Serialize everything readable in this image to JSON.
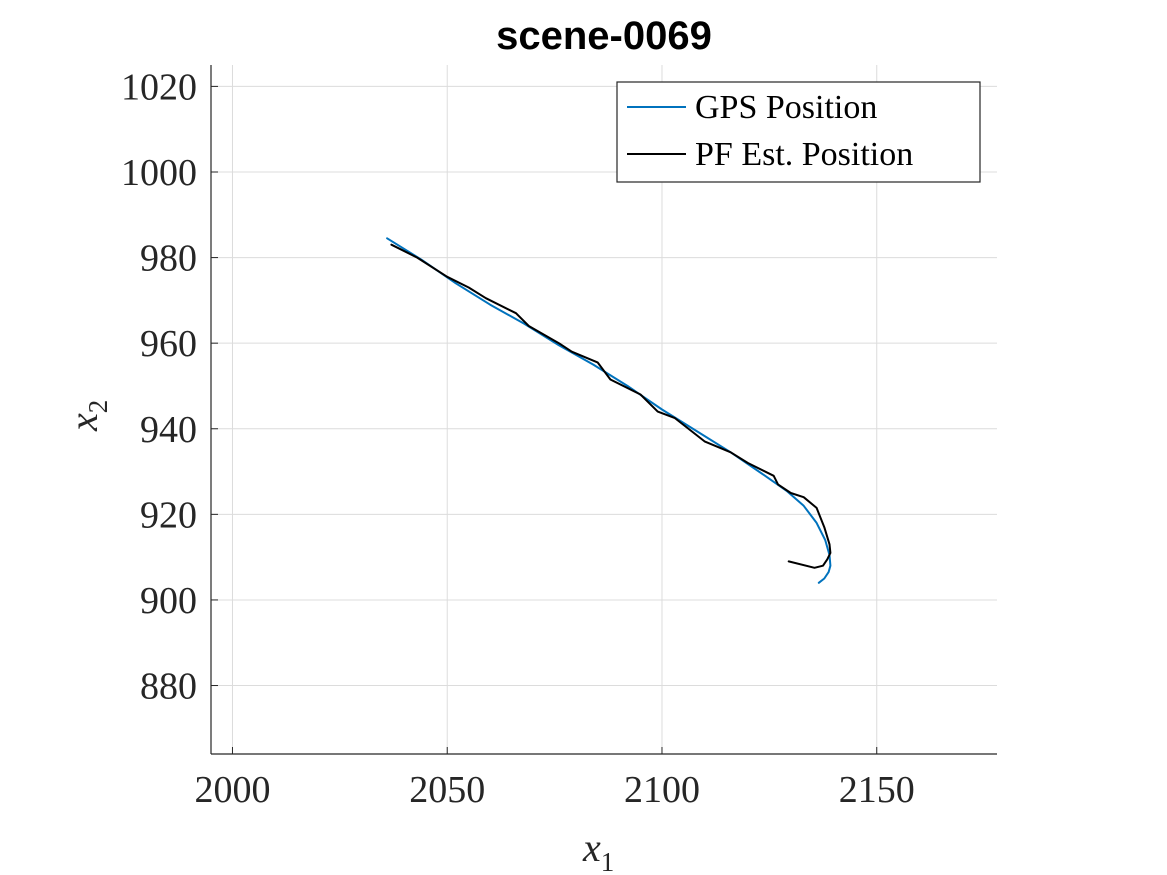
{
  "chart_data": {
    "type": "line",
    "title": "scene-0069",
    "xlabel": "x",
    "xlabel_sub": "1",
    "ylabel": "x",
    "ylabel_sub": "2",
    "xlim": [
      1995,
      2178
    ],
    "ylim": [
      864,
      1025
    ],
    "xticks": [
      2000,
      2050,
      2100,
      2150
    ],
    "yticks": [
      880,
      900,
      920,
      940,
      960,
      980,
      1000,
      1020
    ],
    "grid": true,
    "legend_position": "top-right",
    "series": [
      {
        "name": "GPS Position",
        "color": "#0072bd",
        "x": [
          2036.0,
          2044.0,
          2052.0,
          2060.0,
          2068.0,
          2076.0,
          2084.0,
          2092.0,
          2100.0,
          2108.0,
          2116.0,
          2124.0,
          2129.0,
          2133.0,
          2136.0,
          2138.0,
          2139.0,
          2139.2,
          2138.8,
          2137.8,
          2136.5
        ],
        "y": [
          984.5,
          979.5,
          974.0,
          969.0,
          964.5,
          959.5,
          955.0,
          950.0,
          944.5,
          939.5,
          934.5,
          929.0,
          925.5,
          922.0,
          918.0,
          914.0,
          910.5,
          908.0,
          906.5,
          905.0,
          904.0
        ]
      },
      {
        "name": "PF Est. Position",
        "color": "#000000",
        "x": [
          2037.0,
          2043.0,
          2050.0,
          2055.0,
          2059.0,
          2066.0,
          2069.0,
          2076.0,
          2079.0,
          2085.0,
          2088.0,
          2095.0,
          2099.0,
          2103.0,
          2110.0,
          2116.0,
          2120.0,
          2126.0,
          2127.0,
          2130.0,
          2133.0,
          2136.0,
          2137.8,
          2139.0,
          2139.2,
          2138.5,
          2137.5,
          2135.5,
          2129.5
        ],
        "y": [
          983.0,
          980.0,
          975.5,
          973.0,
          970.5,
          967.0,
          964.0,
          960.0,
          958.0,
          955.5,
          951.5,
          948.0,
          944.0,
          942.5,
          937.0,
          934.5,
          932.0,
          929.0,
          927.0,
          925.0,
          924.0,
          921.5,
          917.0,
          913.0,
          911.0,
          909.5,
          908.0,
          907.5,
          909.0
        ]
      }
    ]
  }
}
